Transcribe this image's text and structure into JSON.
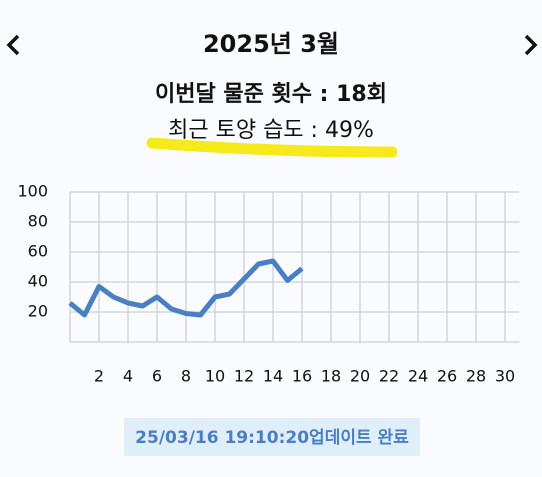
{
  "header": {
    "title": "2025년 3월"
  },
  "stats": {
    "watering": "이번달 물준 횟수 : 18회",
    "humidity": "최근 토양 습도 : 49%"
  },
  "chart_data": {
    "type": "line",
    "x": [
      0,
      1,
      2,
      3,
      4,
      5,
      6,
      7,
      8,
      9,
      10,
      11,
      12,
      13,
      14,
      15,
      16
    ],
    "series": [
      {
        "color": "#4a7fc4",
        "values": [
          26,
          18,
          37,
          30,
          26,
          24,
          30,
          22,
          19,
          18,
          30,
          32,
          42,
          52,
          54,
          41,
          49
        ]
      }
    ],
    "xlim": [
      0,
      31
    ],
    "xticks": [
      2,
      4,
      6,
      8,
      10,
      12,
      14,
      16,
      18,
      20,
      22,
      24,
      26,
      28,
      30
    ],
    "ylim": [
      0,
      100
    ],
    "yticks": [
      20,
      40,
      60,
      80,
      100
    ],
    "grid": true
  },
  "footer": {
    "status": "25/03/16 19:10:20업데이트 완료"
  }
}
